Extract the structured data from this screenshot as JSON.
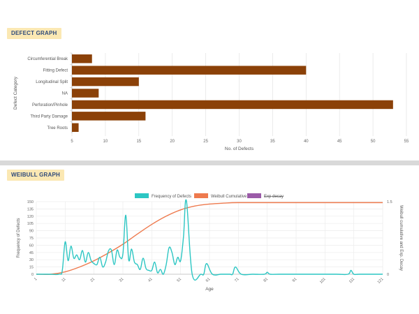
{
  "sections": {
    "defect_title": "DEFECT GRAPH",
    "weibull_title": "WEIBULL GRAPH"
  },
  "chart_data": [
    {
      "type": "bar",
      "orientation": "horizontal",
      "categories": [
        "Circumferential Break",
        "Fitting Defect",
        "Longitudinal Split",
        "NA",
        "Perforation/Pinhole",
        "Third Party Damage",
        "Tree Roots"
      ],
      "values": [
        8,
        40,
        15,
        9,
        53,
        16,
        6
      ],
      "xlabel": "No. of Defects",
      "ylabel": "Defect Category",
      "xlim": [
        5,
        55
      ],
      "xticks": [
        5,
        10,
        15,
        20,
        25,
        30,
        35,
        40,
        45,
        50,
        55
      ],
      "colors": {
        "bar": "#8b4108"
      },
      "grid": true
    },
    {
      "type": "line",
      "xlabel": "Age",
      "ylabel": "Frequency of Defects",
      "y2label": "Weibull cumulative and Exp. Decay",
      "xlim": [
        1,
        121
      ],
      "xticks": [
        1,
        11,
        21,
        31,
        41,
        51,
        61,
        71,
        81,
        91,
        101,
        111,
        121
      ],
      "ylim": [
        0,
        150
      ],
      "yticks": [
        0,
        15,
        30,
        45,
        60,
        75,
        90,
        105,
        120,
        135,
        150
      ],
      "y2lim": [
        0,
        1.5
      ],
      "y2ticks": [
        0,
        1.5
      ],
      "legend": {
        "placement": "top",
        "entries": [
          "Frequency of Defects",
          "Weibull Cumulative",
          "Exp decay"
        ]
      },
      "colors": {
        "frequency": "#2cc6c3",
        "weibull": "#ee7a4e",
        "exp_decay": "#9b5ba8"
      },
      "series": [
        {
          "name": "Frequency of Defects",
          "axis": "left",
          "x": [
            1,
            5,
            9,
            10,
            11,
            12,
            13,
            14,
            15,
            16,
            17,
            18,
            19,
            20,
            21,
            22,
            23,
            24,
            25,
            26,
            27,
            28,
            29,
            30,
            31,
            32,
            33,
            34,
            35,
            36,
            37,
            38,
            39,
            40,
            41,
            42,
            43,
            44,
            45,
            46,
            47,
            48,
            49,
            50,
            51,
            52,
            53,
            55,
            58,
            59,
            60,
            62,
            65,
            68,
            69,
            70,
            72,
            76,
            80,
            81,
            82,
            85,
            95,
            105,
            109,
            110,
            111,
            113,
            121
          ],
          "y": [
            0,
            0,
            0,
            8,
            67,
            28,
            58,
            33,
            40,
            30,
            49,
            25,
            45,
            28,
            22,
            20,
            35,
            15,
            25,
            48,
            50,
            20,
            50,
            35,
            42,
            122,
            30,
            52,
            25,
            20,
            10,
            33,
            12,
            8,
            8,
            25,
            3,
            10,
            0,
            20,
            55,
            45,
            20,
            35,
            28,
            78,
            152,
            0,
            0,
            0,
            22,
            0,
            0,
            0,
            0,
            15,
            0,
            0,
            0,
            4,
            0,
            0,
            0,
            0,
            0,
            8,
            0,
            0,
            0
          ]
        },
        {
          "name": "Weibull Cumulative",
          "axis": "right",
          "x": [
            1,
            6,
            11,
            16,
            21,
            26,
            31,
            36,
            41,
            46,
            51,
            56,
            61,
            66,
            71,
            81,
            91,
            101,
            111,
            121
          ],
          "y": [
            0,
            0,
            0.05,
            0.15,
            0.28,
            0.44,
            0.62,
            0.83,
            1.03,
            1.2,
            1.33,
            1.41,
            1.45,
            1.47,
            1.48,
            1.48,
            1.48,
            1.48,
            1.48,
            1.48
          ]
        },
        {
          "name": "Exp decay",
          "axis": "right",
          "hidden": true,
          "x": [],
          "y": []
        }
      ]
    }
  ]
}
